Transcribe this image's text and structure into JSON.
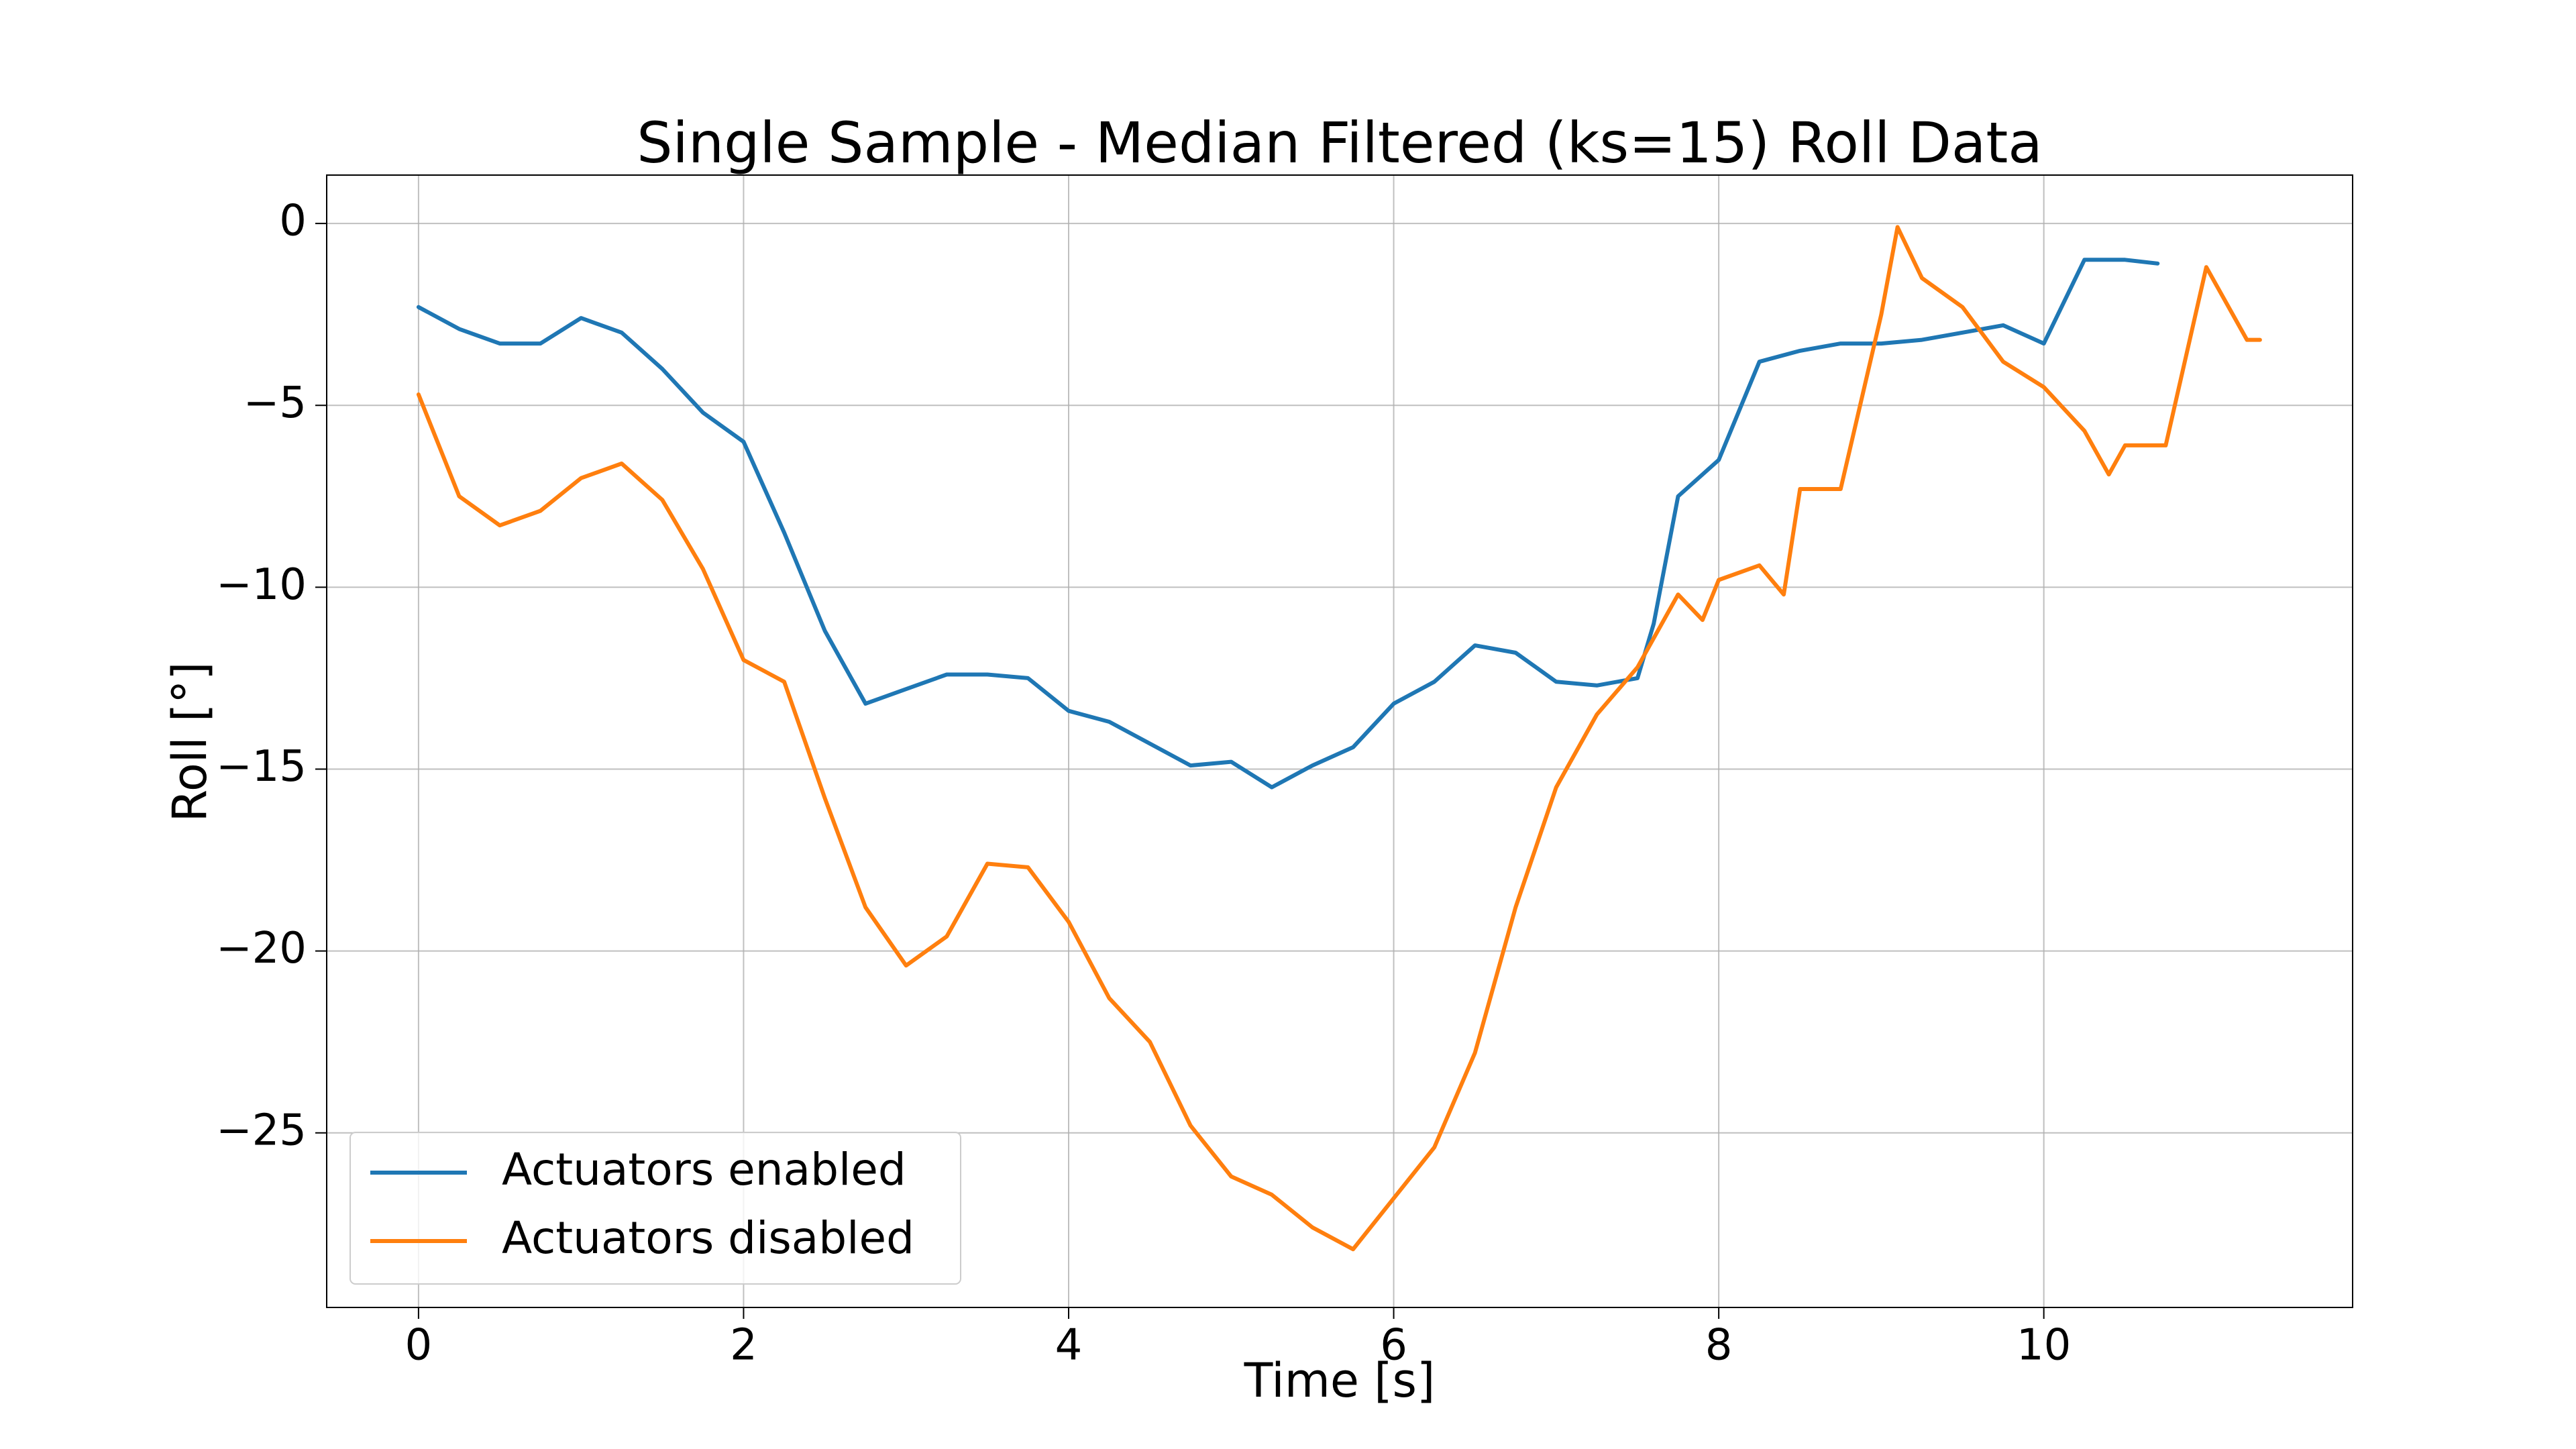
{
  "chart_data": {
    "type": "line",
    "title": "Single Sample - Median Filtered (ks=15) Roll Data",
    "x_label": "Time [s]",
    "y_label": "Roll [°]",
    "xlim": [
      -0.565,
      11.9
    ],
    "ylim": [
      -29.8,
      1.33
    ],
    "xticks": [
      0,
      2,
      4,
      6,
      8,
      10
    ],
    "yticks": [
      {
        "value": -25,
        "label": "−25"
      },
      {
        "value": -20,
        "label": "−20"
      },
      {
        "value": -15,
        "label": "−15"
      },
      {
        "value": -10,
        "label": "−10"
      },
      {
        "value": -5,
        "label": "−5"
      },
      0
    ],
    "grid": true,
    "legend": "lower left",
    "series": [
      {
        "name": "Actuators enabled",
        "color": "#1f77b4",
        "x": [
          0,
          0.25,
          0.5,
          0.75,
          1.0,
          1.25,
          1.5,
          1.75,
          2.0,
          2.25,
          2.5,
          2.75,
          3.0,
          3.25,
          3.5,
          3.75,
          4.0,
          4.25,
          4.5,
          4.75,
          5.0,
          5.25,
          5.5,
          5.75,
          6.0,
          6.25,
          6.5,
          6.75,
          7.0,
          7.25,
          7.5,
          7.6,
          7.75,
          8.0,
          8.25,
          8.5,
          8.75,
          9.0,
          9.25,
          9.5,
          9.75,
          10.0,
          10.25,
          10.5,
          10.7
        ],
        "values": [
          -2.3,
          -2.9,
          -3.3,
          -3.3,
          -2.6,
          -3.0,
          -4.0,
          -5.2,
          -6.0,
          -8.5,
          -11.2,
          -13.2,
          -12.8,
          -12.4,
          -12.4,
          -12.5,
          -13.4,
          -13.7,
          -14.3,
          -14.9,
          -14.8,
          -15.5,
          -14.9,
          -14.4,
          -13.2,
          -12.6,
          -11.6,
          -11.8,
          -12.6,
          -12.7,
          -12.5,
          -11.0,
          -7.5,
          -6.5,
          -3.8,
          -3.5,
          -3.3,
          -3.3,
          -3.2,
          -3.0,
          -2.8,
          -3.3,
          -1.0,
          -1.0,
          -1.1
        ]
      },
      {
        "name": "Actuators disabled",
        "color": "#ff7f0e",
        "x": [
          0,
          0.25,
          0.5,
          0.75,
          1.0,
          1.25,
          1.5,
          1.75,
          2.0,
          2.25,
          2.5,
          2.75,
          3.0,
          3.25,
          3.5,
          3.75,
          4.0,
          4.25,
          4.5,
          4.75,
          5.0,
          5.25,
          5.5,
          5.75,
          6.0,
          6.25,
          6.5,
          6.75,
          7.0,
          7.25,
          7.5,
          7.75,
          7.9,
          8.0,
          8.25,
          8.4,
          8.5,
          8.75,
          9.0,
          9.1,
          9.25,
          9.5,
          9.75,
          10.0,
          10.25,
          10.4,
          10.5,
          10.75,
          11.0,
          11.25,
          11.33
        ],
        "values": [
          -4.7,
          -7.5,
          -8.3,
          -7.9,
          -7.0,
          -6.6,
          -7.6,
          -9.5,
          -12.0,
          -12.6,
          -15.8,
          -18.8,
          -20.4,
          -19.6,
          -17.6,
          -17.7,
          -19.2,
          -21.3,
          -22.5,
          -24.8,
          -26.2,
          -26.7,
          -27.6,
          -28.2,
          -26.8,
          -25.4,
          -22.8,
          -18.8,
          -15.5,
          -13.5,
          -12.2,
          -10.2,
          -10.9,
          -9.8,
          -9.4,
          -10.2,
          -7.3,
          -7.3,
          -2.5,
          -0.1,
          -1.5,
          -2.3,
          -3.8,
          -4.5,
          -5.7,
          -6.9,
          -6.1,
          -6.1,
          -1.2,
          -3.2,
          -3.2
        ]
      }
    ]
  }
}
